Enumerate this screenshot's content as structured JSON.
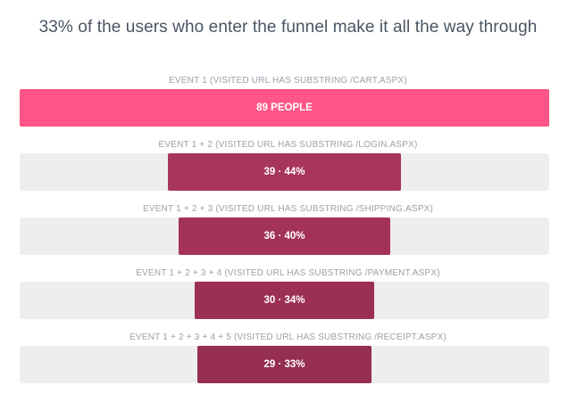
{
  "title": "33% of the users who enter the funnel make it all the way through",
  "chart_data": {
    "type": "bar",
    "orientation": "funnel",
    "steps": [
      {
        "label": "Event 1 (visited URL has substring /cart.aspx)",
        "value": 89,
        "percent": 100,
        "bar_text": "89 people",
        "color": "#FF5588"
      },
      {
        "label": "Event 1 + 2 (visited URL has substring /login.aspx)",
        "value": 39,
        "percent": 44,
        "bar_text": "39 · 44%",
        "color": "#A8355A"
      },
      {
        "label": "Event 1 + 2 + 3 (visited URL has substring /shipping.aspx)",
        "value": 36,
        "percent": 40,
        "bar_text": "36 · 40%",
        "color": "#A33259"
      },
      {
        "label": "Event 1 + 2 + 3 + 4 (visited URL has substring /payment.aspx)",
        "value": 30,
        "percent": 34,
        "bar_text": "30 · 34%",
        "color": "#9B2F55"
      },
      {
        "label": "Event 1 + 2 + 3 + 4 + 5 (visited URL has substring /receipt.aspx)",
        "value": 29,
        "percent": 33,
        "bar_text": "29 · 33%",
        "color": "#962E52"
      }
    ],
    "track_color": "#EEEEEE"
  }
}
